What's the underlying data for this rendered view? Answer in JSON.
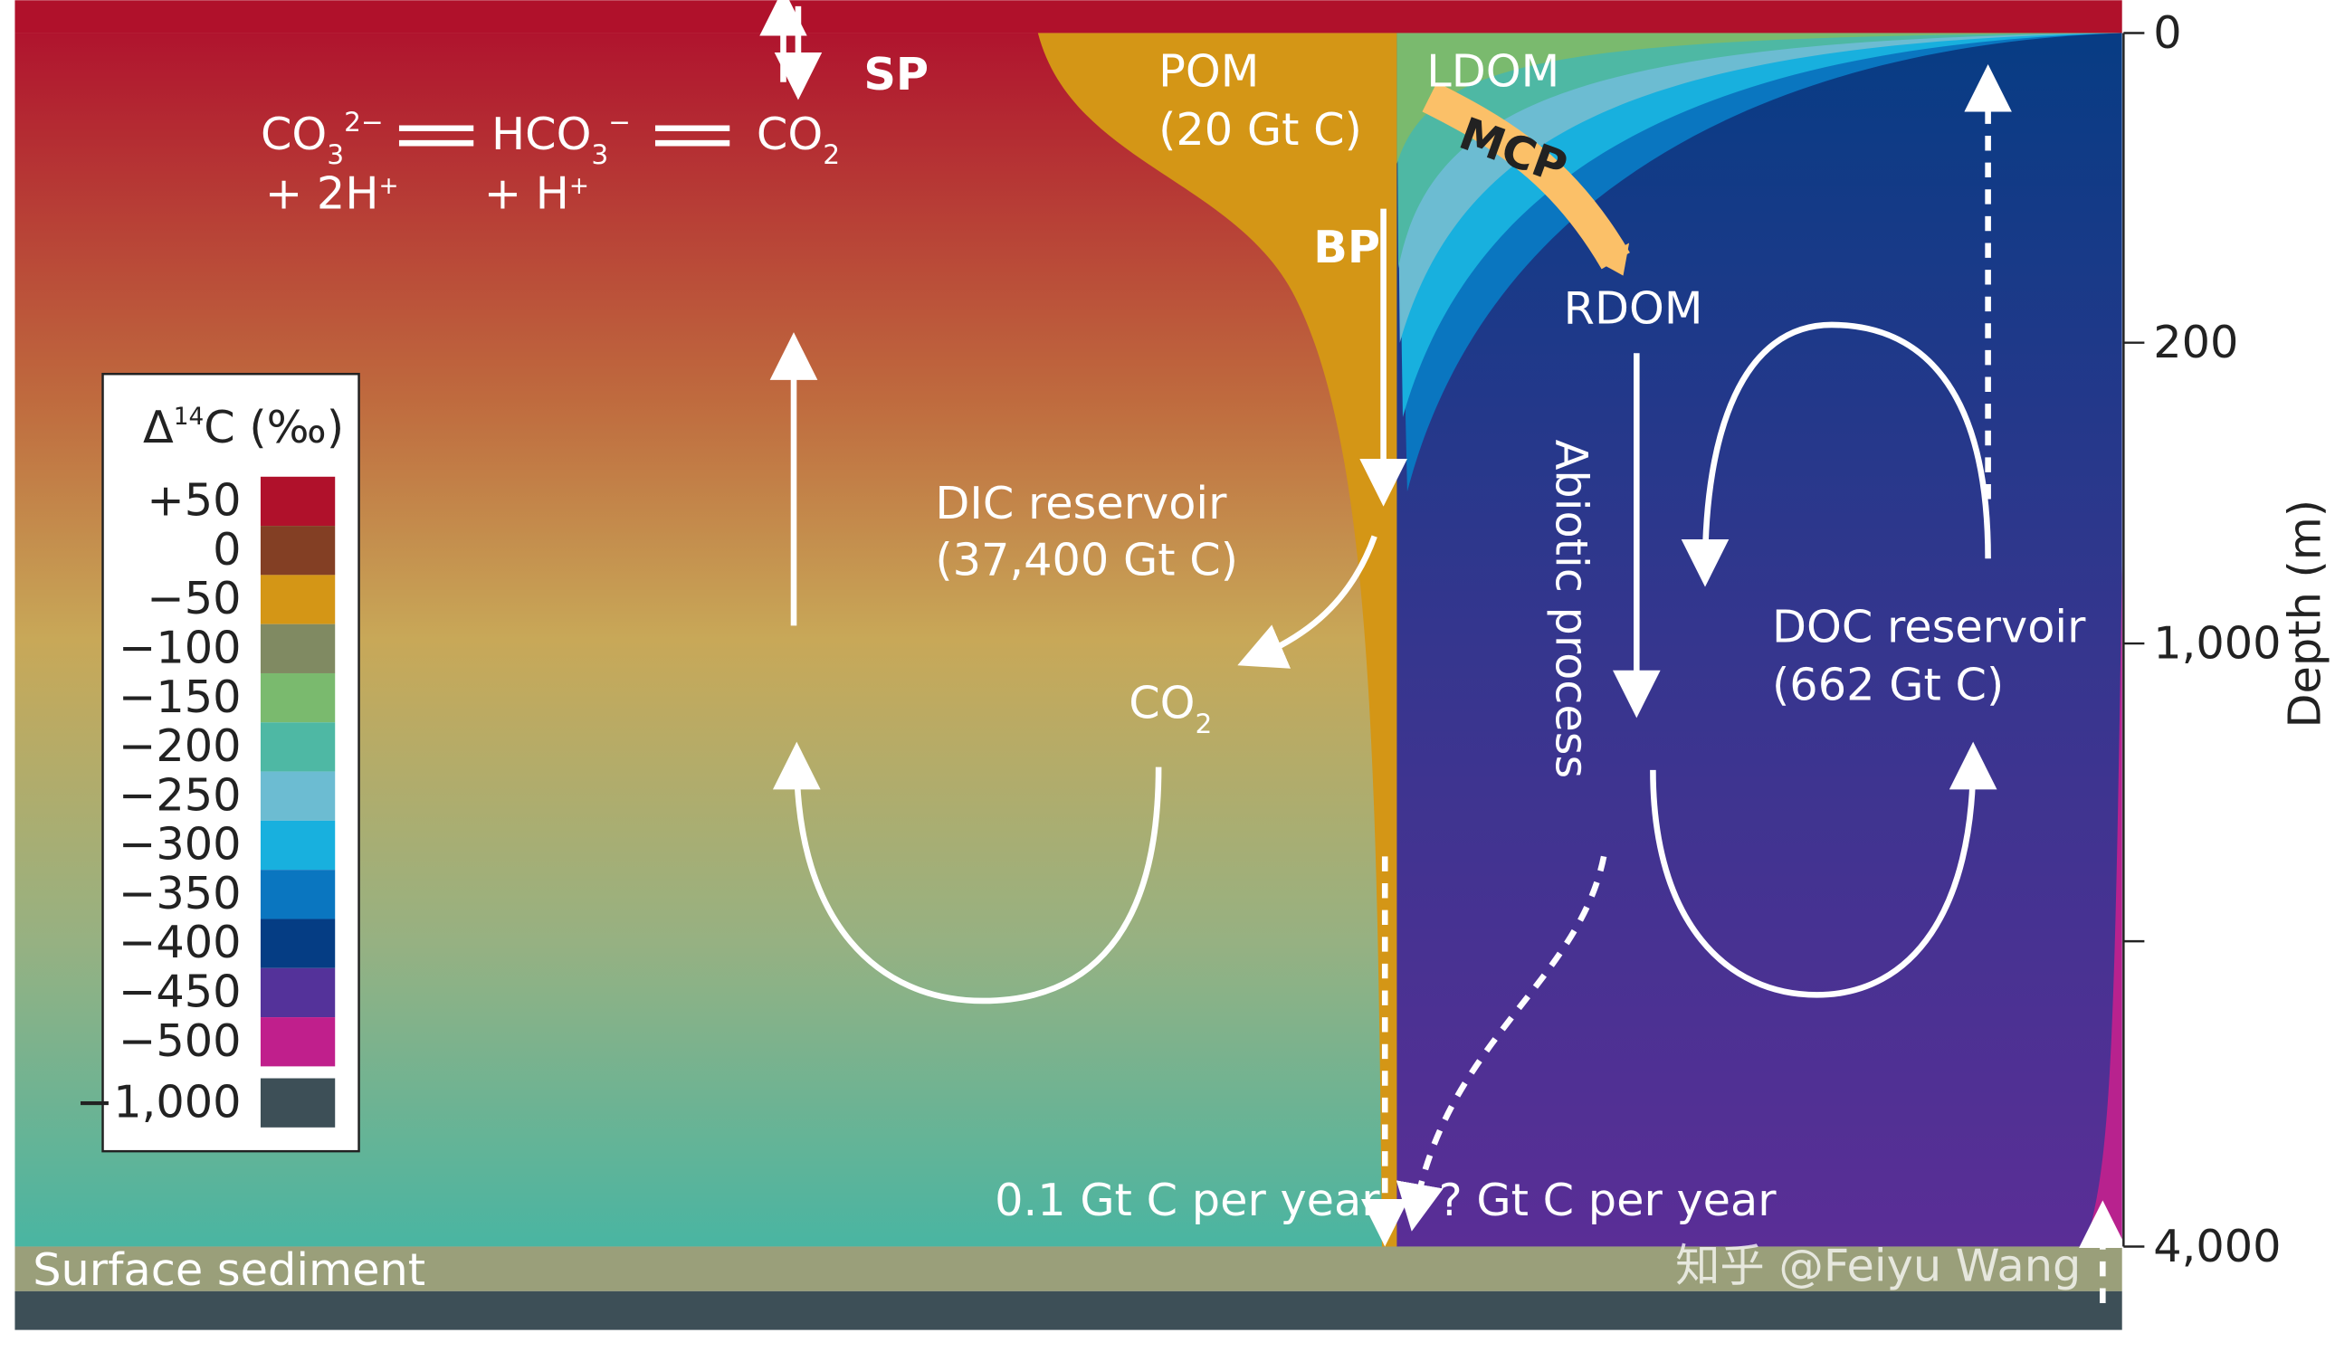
{
  "labels": {
    "sp": "SP",
    "pom": "POM",
    "pom_amount": "(20 Gt C)",
    "ldom": "LDOM",
    "mcp": "MCP",
    "bp": "BP",
    "rdom": "RDOM",
    "dic": "DIC reservoir",
    "dic_amount": "(37,400 Gt C)",
    "abiotic": "Abiotic process",
    "doc": "DOC reservoir",
    "doc_amount": "(662 Gt C)",
    "flux_left": "0.1 Gt C per year",
    "flux_right": "? Gt C per year",
    "sediment": "Surface sediment",
    "watermark": "知乎 @Feiyu Wang"
  },
  "chemistry": {
    "carbonate": {
      "base": "CO",
      "sub": "3",
      "sup": "2−"
    },
    "carbonate_h": "+ 2H",
    "carbonate_h_sup": "+",
    "bicarbonate": {
      "base": "HCO",
      "sub": "3",
      "sup": "−"
    },
    "bicarbonate_h": "+ H",
    "bicarbonate_h_sup": "+",
    "co2": {
      "base": "CO",
      "sub": "2"
    }
  },
  "co2_mid": {
    "base": "CO",
    "sub": "2"
  },
  "legend": {
    "title_pre": "Δ",
    "title_sup": "14",
    "title_post": "C (‰)",
    "items": [
      {
        "label": "+50",
        "color": "#b0112b"
      },
      {
        "label": "0",
        "color": "#833f24"
      },
      {
        "label": "−50",
        "color": "#d49616"
      },
      {
        "label": "−100",
        "color": "#808a62"
      },
      {
        "label": "−150",
        "color": "#7aba6e"
      },
      {
        "label": "−200",
        "color": "#4eb8a4"
      },
      {
        "label": "−250",
        "color": "#6cbcd2"
      },
      {
        "label": "−300",
        "color": "#18b0de"
      },
      {
        "label": "−350",
        "color": "#0a76c0"
      },
      {
        "label": "−400",
        "color": "#053d84"
      },
      {
        "label": "−450",
        "color": "#54329a"
      },
      {
        "label": "−500",
        "color": "#c01f8c"
      },
      {
        "label": "−1,000",
        "color": "#3d4f57"
      }
    ]
  },
  "depth_axis": {
    "title": "Depth (m)",
    "ticks": [
      "0",
      "200",
      "1,000",
      "4,000"
    ]
  }
}
